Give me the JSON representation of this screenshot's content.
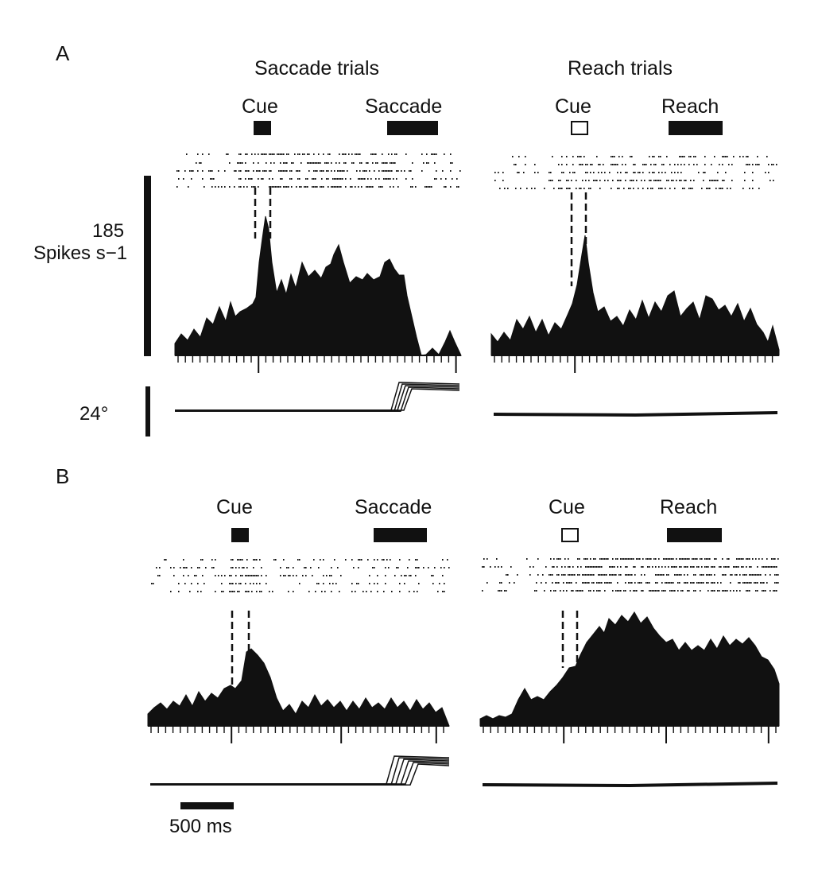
{
  "figure": {
    "panel_a": {
      "letter": "A",
      "saccade_title": "Saccade trials",
      "reach_title": "Reach trials",
      "saccade_cue_label": "Cue",
      "saccade_epoch_label": "Saccade",
      "reach_cue_label": "Cue",
      "reach_epoch_label": "Reach",
      "rate_scale_value": "185",
      "rate_scale_unit": "Spikes s−1",
      "eye_scale_label": "24°"
    },
    "panel_b": {
      "letter": "B",
      "saccade_cue_label": "Cue",
      "saccade_epoch_label": "Saccade",
      "reach_cue_label": "Cue",
      "reach_epoch_label": "Reach"
    },
    "time_scale_label": "500 ms"
  },
  "colors": {
    "ink": "#111111",
    "background": "#ffffff"
  }
}
